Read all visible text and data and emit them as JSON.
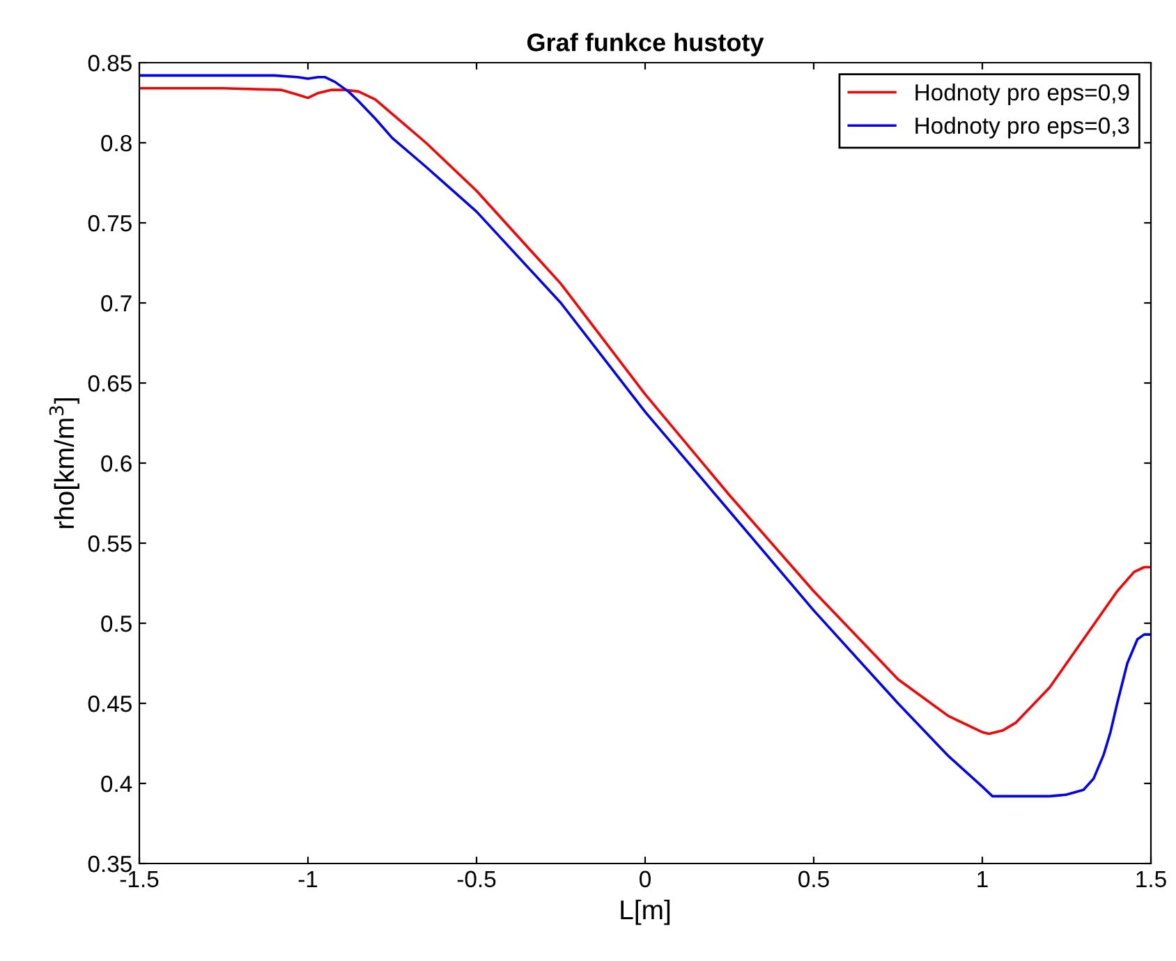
{
  "chart_data": {
    "type": "line",
    "title": "Graf funkce hustoty",
    "xlabel": "L[m]",
    "ylabel": "rho[km/m$^{3}$]",
    "xlim": [
      -1.5,
      1.5
    ],
    "xticks": [
      -1.5,
      -1,
      -0.5,
      0,
      0.5,
      1,
      1.5
    ],
    "ylim": [
      0.35,
      0.85
    ],
    "yticks": [
      0.35,
      0.4,
      0.45,
      0.5,
      0.55,
      0.6,
      0.65,
      0.7,
      0.75,
      0.8,
      0.85
    ],
    "grid": false,
    "legend": "top right",
    "line_style": "solid",
    "marker": "none",
    "series": [
      {
        "name": "Hodnoty pro eps=0,9",
        "color": "#ff0000",
        "x": [
          -1.5,
          -1.25,
          -1.08,
          -1.03,
          -1.0,
          -0.97,
          -0.93,
          -0.89,
          -0.85,
          -0.8,
          -0.75,
          -0.65,
          -0.5,
          -0.25,
          0,
          0.25,
          0.5,
          0.75,
          0.9,
          1.0,
          1.02,
          1.06,
          1.1,
          1.2,
          1.3,
          1.4,
          1.45,
          1.48,
          1.5
        ],
        "values": [
          0.834,
          0.834,
          0.833,
          0.83,
          0.828,
          0.831,
          0.833,
          0.833,
          0.832,
          0.827,
          0.818,
          0.8,
          0.77,
          0.712,
          0.643,
          0.58,
          0.52,
          0.465,
          0.442,
          0.432,
          0.431,
          0.433,
          0.438,
          0.46,
          0.49,
          0.52,
          0.532,
          0.535,
          0.535
        ]
      },
      {
        "name": "Hodnoty pro eps=0,3",
        "color": "#0000ff",
        "x": [
          -1.5,
          -1.25,
          -1.1,
          -1.03,
          -1.0,
          -0.97,
          -0.95,
          -0.92,
          -0.88,
          -0.85,
          -0.8,
          -0.75,
          -0.65,
          -0.5,
          -0.25,
          0,
          0.25,
          0.5,
          0.75,
          0.9,
          1.0,
          1.03,
          1.1,
          1.2,
          1.25,
          1.3,
          1.33,
          1.36,
          1.38,
          1.4,
          1.43,
          1.46,
          1.48,
          1.5
        ],
        "values": [
          0.842,
          0.842,
          0.842,
          0.841,
          0.84,
          0.841,
          0.841,
          0.838,
          0.832,
          0.826,
          0.815,
          0.803,
          0.785,
          0.757,
          0.7,
          0.632,
          0.57,
          0.508,
          0.45,
          0.417,
          0.398,
          0.392,
          0.392,
          0.392,
          0.393,
          0.396,
          0.403,
          0.418,
          0.432,
          0.45,
          0.475,
          0.49,
          0.493,
          0.493
        ]
      }
    ]
  }
}
